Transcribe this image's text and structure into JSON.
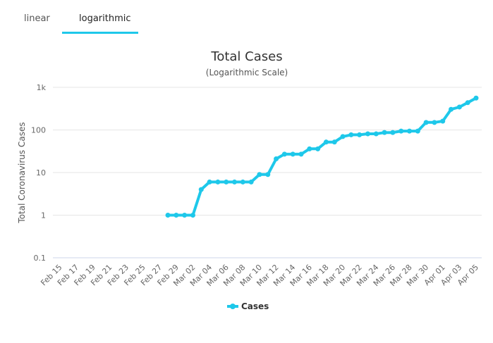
{
  "tabs": [
    "linear",
    "logarithmic"
  ],
  "chart_data": {
    "type": "line",
    "title": "Total Cases",
    "subtitle": "(Logarithmic Scale)",
    "y_label": "Total Coronavirus Cases",
    "categories": [
      "Feb 15",
      null,
      "Feb 17",
      null,
      "Feb 19",
      null,
      "Feb 21",
      null,
      "Feb 23",
      null,
      "Feb 25",
      null,
      "Feb 27",
      null,
      "Feb 29",
      null,
      "Mar 02",
      null,
      "Mar 04",
      null,
      "Mar 06",
      null,
      "Mar 08",
      null,
      "Mar 10",
      null,
      "Mar 12",
      null,
      "Mar 14",
      null,
      "Mar 16",
      null,
      "Mar 18",
      null,
      "Mar 20",
      null,
      "Mar 22",
      null,
      "Mar 24",
      null,
      "Mar 26",
      null,
      "Mar 28",
      null,
      "Mar 30",
      null,
      "Apr 01",
      null,
      "Apr 03",
      null,
      "Apr 05"
    ],
    "series": [
      {
        "name": "Cases",
        "color": "#1ec8ea",
        "values": [
          null,
          null,
          null,
          null,
          null,
          null,
          null,
          null,
          null,
          null,
          null,
          null,
          null,
          1,
          1,
          1,
          1,
          4,
          6,
          6,
          6,
          6,
          6,
          6,
          9,
          9,
          21,
          27,
          27,
          27,
          36,
          36,
          52,
          52,
          70,
          77,
          77,
          81,
          81,
          87,
          87,
          94,
          94,
          94,
          150,
          150,
          161,
          305,
          345,
          438,
          560
        ]
      }
    ],
    "ylim": [
      0.1,
      1000
    ],
    "yticks": [
      0.1,
      1,
      10,
      100,
      {
        "value": 1000,
        "label": "1k"
      }
    ],
    "log_scale": true,
    "grid": true,
    "legend": "bottom"
  }
}
